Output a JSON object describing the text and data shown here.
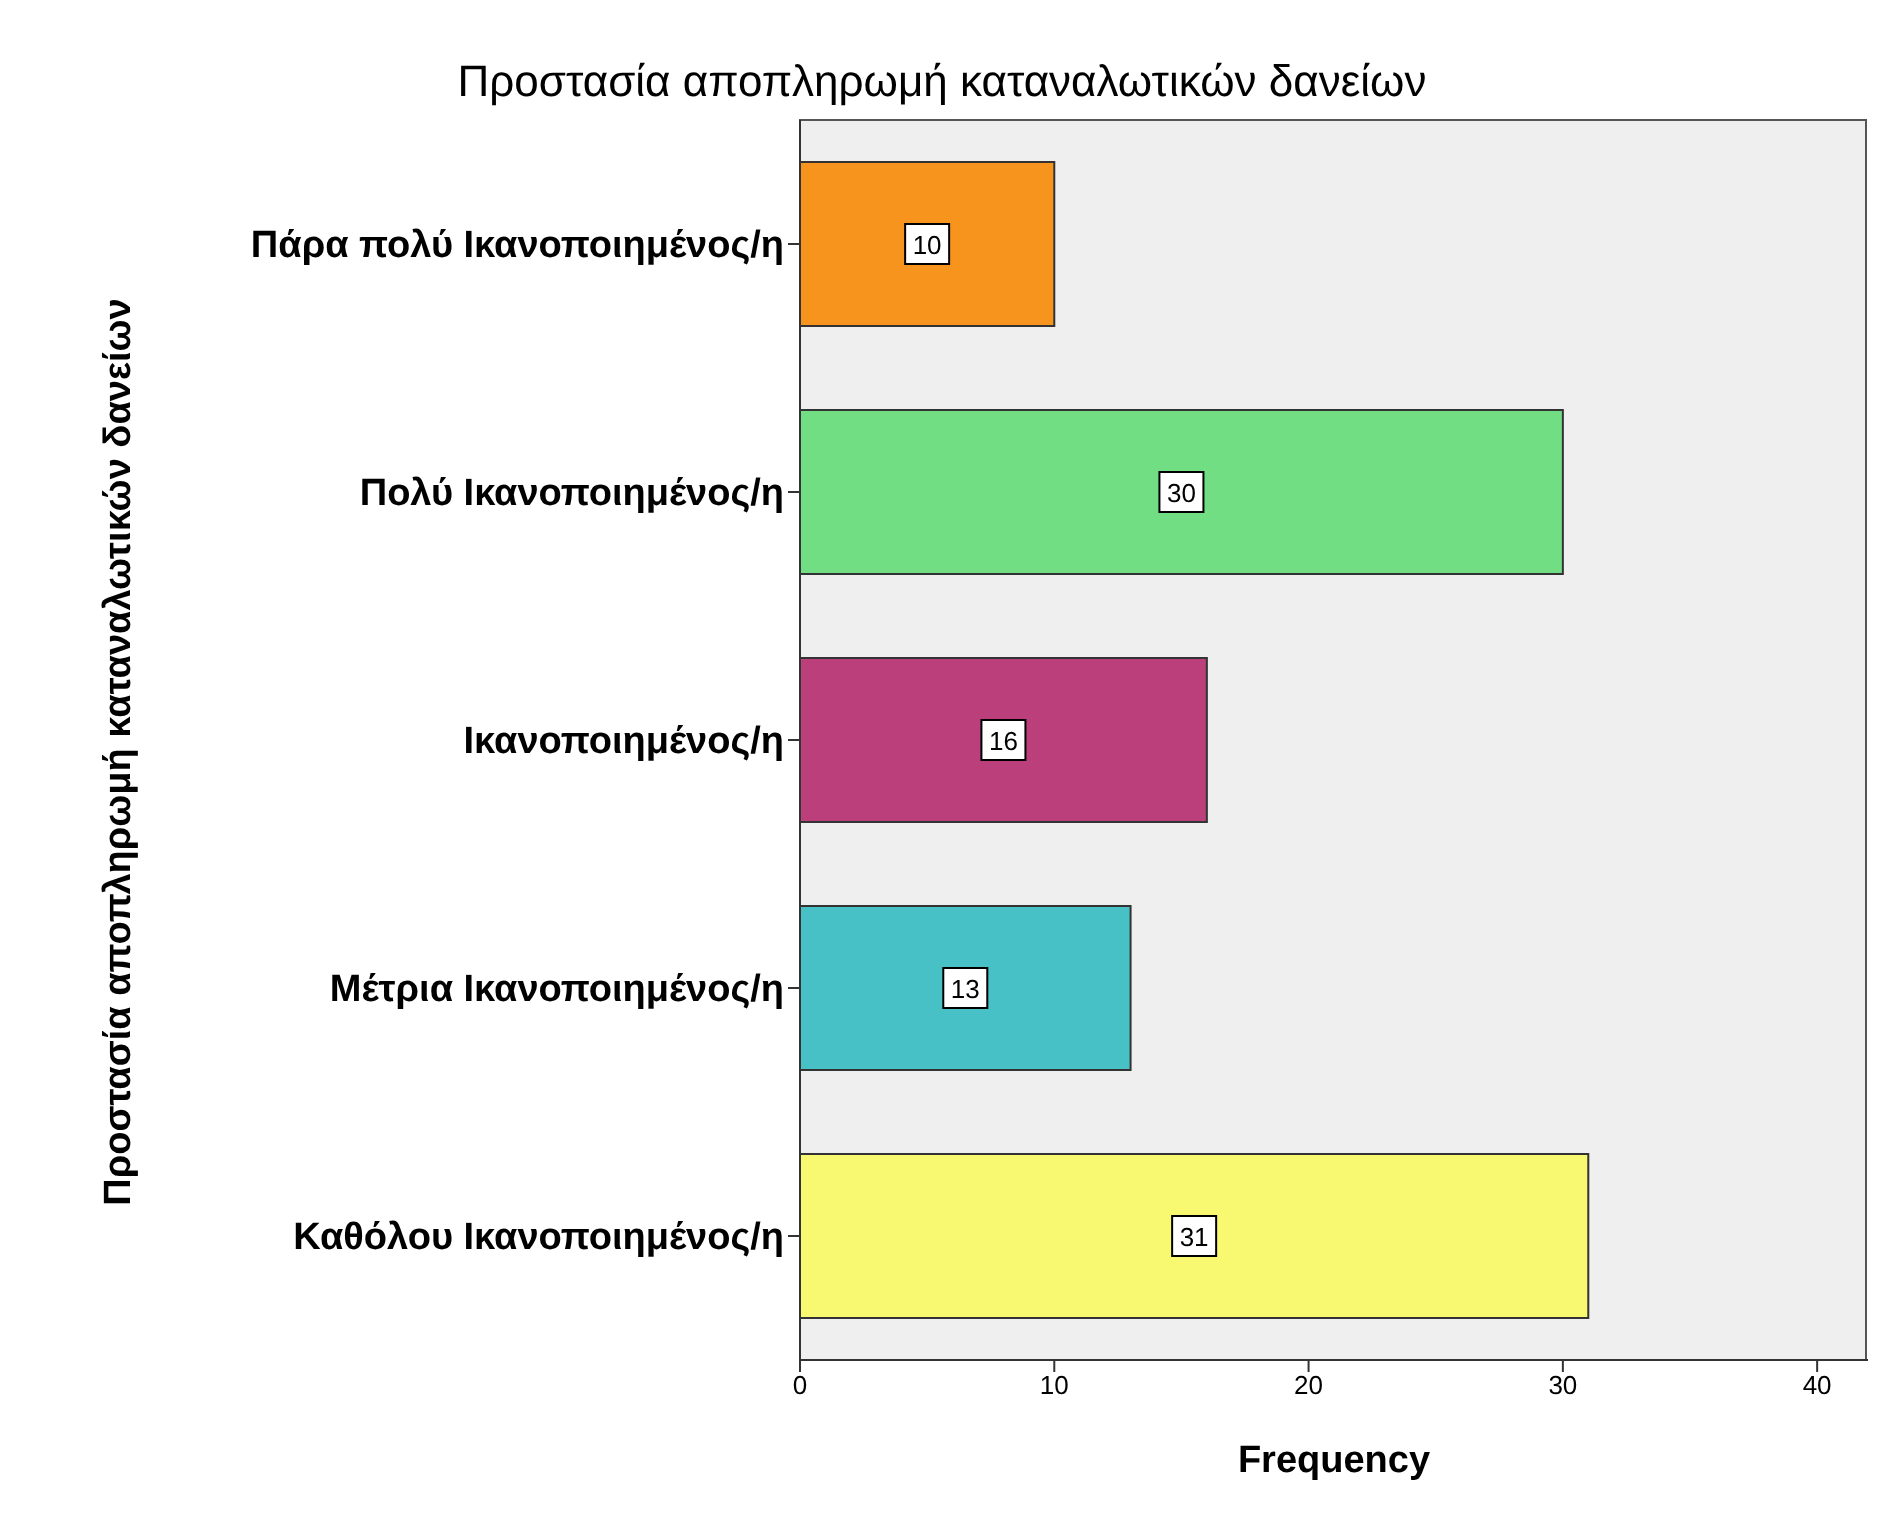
{
  "chart_data": {
    "type": "bar",
    "orientation": "horizontal",
    "title": "Προστασία αποπληρωμή καταναλωτικών δανείων",
    "xlabel": "Frequency",
    "ylabel": "Προστασία αποπληρωμή καταναλωτικών δανείων",
    "categories": [
      "Πάρα πολύ Ικανοποιημένος/η",
      "Πολύ Ικανοποιημένος/η",
      "Ικανοποιημένος/η",
      "Μέτρια Ικανοποιημένος/η",
      "Καθόλου Ικανοποιημένος/η"
    ],
    "values": [
      10,
      30,
      16,
      13,
      31
    ],
    "colors": [
      "#f7941d",
      "#72de84",
      "#bb3f7b",
      "#47c1c6",
      "#f9f871"
    ],
    "xlim": [
      0,
      42
    ],
    "xticks": [
      0,
      10,
      20,
      30,
      40
    ],
    "data_labels": true
  }
}
